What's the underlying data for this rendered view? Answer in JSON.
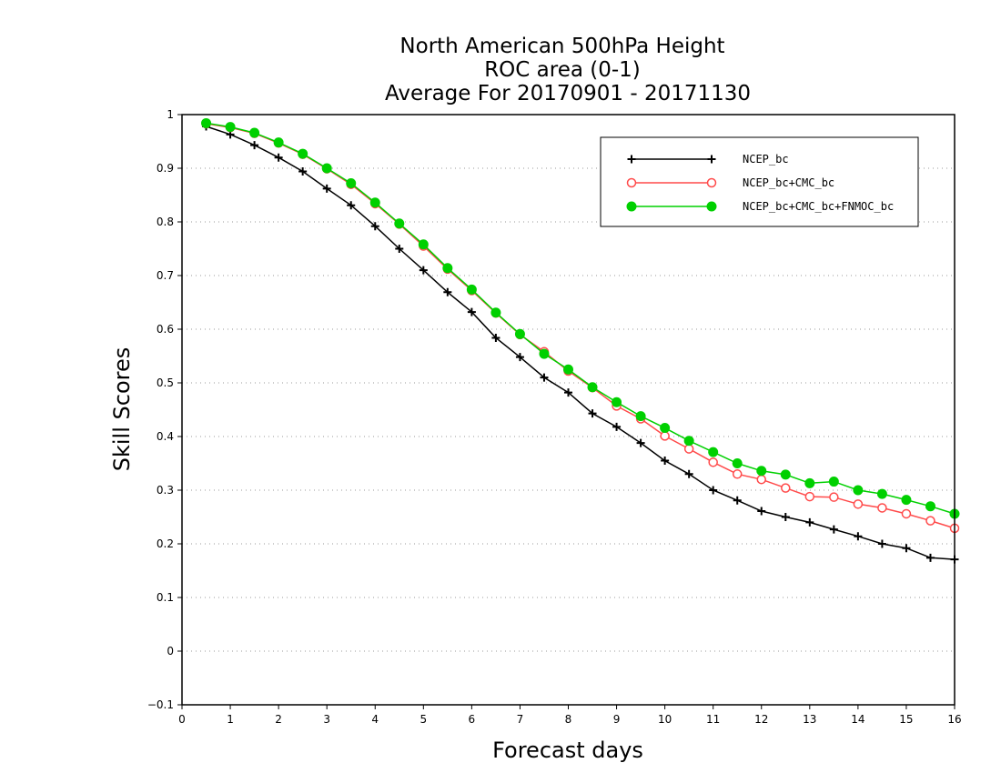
{
  "chart_data": {
    "type": "line",
    "title_lines": [
      "North American 500hPa Height",
      "ROC area (0-1)",
      "Average For 20170901 - 20171130"
    ],
    "xlabel": "Forecast days",
    "ylabel": "Skill Scores",
    "xlim": [
      0,
      16
    ],
    "ylim": [
      -0.1,
      1
    ],
    "x_ticks": [
      0,
      1,
      2,
      3,
      4,
      5,
      6,
      7,
      8,
      9,
      10,
      11,
      12,
      13,
      14,
      15,
      16
    ],
    "x_tick_labels": [
      "0",
      "1",
      "2",
      "3",
      "4",
      "5",
      "6",
      "7",
      "8",
      "9",
      "10",
      "11",
      "12",
      "13",
      "14",
      "15",
      "16"
    ],
    "y_ticks": [
      -0.1,
      0,
      0.1,
      0.2,
      0.3,
      0.4,
      0.5,
      0.6,
      0.7,
      0.8,
      0.9,
      1
    ],
    "y_tick_labels": [
      "−0.1",
      "0",
      "0.1",
      "0.2",
      "0.3",
      "0.4",
      "0.5",
      "0.6",
      "0.7",
      "0.8",
      "0.9",
      "1"
    ],
    "grid": "horizontal dotted",
    "legend_position": "top-right",
    "x": [
      0.5,
      1,
      1.5,
      2,
      2.5,
      3,
      3.5,
      4,
      4.5,
      5,
      5.5,
      6,
      6.5,
      7,
      7.5,
      8,
      8.5,
      9,
      9.5,
      10,
      10.5,
      11,
      11.5,
      12,
      12.5,
      13,
      13.5,
      14,
      14.5,
      15,
      15.5,
      16
    ],
    "series": [
      {
        "name": "NCEP_bc",
        "color": "#000000",
        "marker": "plus",
        "values": [
          0.978,
          0.963,
          0.943,
          0.92,
          0.894,
          0.862,
          0.831,
          0.792,
          0.75,
          0.71,
          0.669,
          0.632,
          0.584,
          0.548,
          0.51,
          0.482,
          0.443,
          0.418,
          0.388,
          0.355,
          0.33,
          0.3,
          0.281,
          0.261,
          0.25,
          0.24,
          0.227,
          0.214,
          0.2,
          0.192,
          0.174,
          0.171
        ]
      },
      {
        "name": "NCEP_bc+CMC_bc",
        "color": "#ff4a4a",
        "marker": "open-circle",
        "values": [
          0.983,
          0.976,
          0.965,
          0.947,
          0.926,
          0.899,
          0.87,
          0.834,
          0.796,
          0.755,
          0.712,
          0.672,
          0.63,
          0.59,
          0.558,
          0.522,
          0.491,
          0.457,
          0.433,
          0.401,
          0.377,
          0.352,
          0.33,
          0.32,
          0.304,
          0.288,
          0.287,
          0.274,
          0.267,
          0.256,
          0.243,
          0.229
        ]
      },
      {
        "name": "NCEP_bc+CMC_bc+FNMOC_bc",
        "color": "#00d000",
        "marker": "filled-circle",
        "values": [
          0.984,
          0.977,
          0.966,
          0.948,
          0.927,
          0.9,
          0.872,
          0.836,
          0.797,
          0.758,
          0.714,
          0.674,
          0.631,
          0.591,
          0.554,
          0.525,
          0.492,
          0.464,
          0.438,
          0.416,
          0.392,
          0.371,
          0.35,
          0.336,
          0.329,
          0.313,
          0.316,
          0.3,
          0.293,
          0.282,
          0.27,
          0.256
        ]
      }
    ]
  }
}
